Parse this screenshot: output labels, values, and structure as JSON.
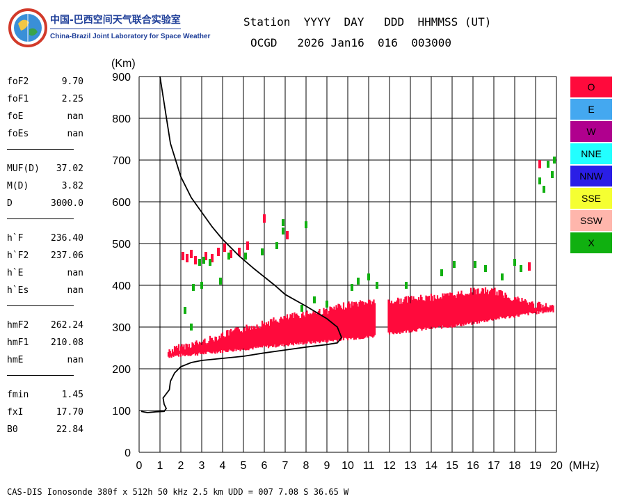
{
  "logo": {
    "org_cn": "中国-巴西空间天气联合实验室",
    "org_en": "China-Brazil Joint Laboratory for Space Weather"
  },
  "header": {
    "line1": "Station  YYYY  DAY   DDD  HHMMSS (UT)",
    "line2": "OCGD   2026 Jan16  016  003000"
  },
  "params": {
    "group1": [
      {
        "name": "foF2",
        "value": "9.70"
      },
      {
        "name": "foF1",
        "value": "2.25"
      },
      {
        "name": "foE",
        "value": "nan"
      },
      {
        "name": "foEs",
        "value": "nan"
      }
    ],
    "group2": [
      {
        "name": "MUF(D)",
        "value": "37.02"
      },
      {
        "name": "M(D)",
        "value": "3.82"
      },
      {
        "name": "D",
        "value": "3000.0"
      }
    ],
    "group3": [
      {
        "name": "h`F",
        "value": "236.40"
      },
      {
        "name": "h`F2",
        "value": "237.06"
      },
      {
        "name": "h`E",
        "value": "nan"
      },
      {
        "name": "h`Es",
        "value": "nan"
      }
    ],
    "group4": [
      {
        "name": "hmF2",
        "value": "262.24"
      },
      {
        "name": "hmF1",
        "value": "210.08"
      },
      {
        "name": "hmE",
        "value": "nan"
      }
    ],
    "group5": [
      {
        "name": "fmin",
        "value": "1.45"
      },
      {
        "name": "fxI",
        "value": "17.70"
      },
      {
        "name": "B0",
        "value": "22.84"
      }
    ]
  },
  "legend": [
    {
      "label": "O",
      "color": "#ff0a3c"
    },
    {
      "label": "E",
      "color": "#44a8f0"
    },
    {
      "label": "W",
      "color": "#b0008e"
    },
    {
      "label": "NNE",
      "color": "#22ffff"
    },
    {
      "label": "NNW",
      "color": "#2a1ee6"
    },
    {
      "label": "SSE",
      "color": "#f5ff32"
    },
    {
      "label": "SSW",
      "color": "#ffb6ac"
    },
    {
      "label": "X",
      "color": "#10b010"
    }
  ],
  "footer": "CAS-DIS Ionosonde 380f x 512h 50 kHz 2.5 km UDD = 007 7.08 S 36.65 W",
  "chart_data": {
    "type": "scatter",
    "xlabel": "(MHz)",
    "ylabel": "(Km)",
    "xlim": [
      0,
      20
    ],
    "ylim": [
      0,
      900
    ],
    "xticks": [
      "0",
      "1",
      "2",
      "3",
      "4",
      "5",
      "6",
      "7",
      "8",
      "9",
      "10",
      "11",
      "12",
      "13",
      "14",
      "15",
      "16",
      "17",
      "18",
      "19",
      "20"
    ],
    "yticks": [
      "0",
      "100",
      "200",
      "300",
      "400",
      "500",
      "600",
      "700",
      "800",
      "900"
    ],
    "grid": true,
    "series": [
      {
        "name": "O",
        "color": "#ff0a3c",
        "band": {
          "x": [
            1.4,
            2,
            3,
            4,
            5,
            6,
            7,
            8,
            9,
            10,
            11,
            12,
            13,
            14,
            15,
            16,
            17,
            18,
            19,
            19.9
          ],
          "lower": [
            225,
            228,
            232,
            238,
            243,
            248,
            253,
            258,
            262,
            268,
            272,
            280,
            287,
            293,
            298,
            305,
            315,
            322,
            330,
            335
          ],
          "upper": [
            250,
            262,
            272,
            290,
            305,
            318,
            330,
            342,
            348,
            362,
            370,
            370,
            375,
            380,
            385,
            395,
            395,
            378,
            362,
            355
          ]
        },
        "points": [
          [
            2.1,
            470
          ],
          [
            2.3,
            465
          ],
          [
            2.5,
            475
          ],
          [
            2.7,
            460
          ],
          [
            3.2,
            470
          ],
          [
            3.5,
            465
          ],
          [
            3.8,
            480
          ],
          [
            4.1,
            490
          ],
          [
            4.4,
            475
          ],
          [
            4.8,
            480
          ],
          [
            5.2,
            495
          ],
          [
            6.0,
            560
          ],
          [
            7.1,
            520
          ],
          [
            18.7,
            445
          ],
          [
            19.2,
            690
          ]
        ]
      },
      {
        "name": "X",
        "color": "#10b010",
        "points": [
          [
            2.2,
            340
          ],
          [
            2.5,
            300
          ],
          [
            2.9,
            455
          ],
          [
            3.1,
            460
          ],
          [
            3.4,
            455
          ],
          [
            2.6,
            395
          ],
          [
            3.0,
            400
          ],
          [
            3.9,
            410
          ],
          [
            4.3,
            470
          ],
          [
            5.1,
            470
          ],
          [
            5.9,
            480
          ],
          [
            6.6,
            495
          ],
          [
            6.9,
            550
          ],
          [
            6.9,
            530
          ],
          [
            8.0,
            545
          ],
          [
            7.8,
            345
          ],
          [
            8.4,
            365
          ],
          [
            9.0,
            355
          ],
          [
            10.2,
            395
          ],
          [
            10.5,
            410
          ],
          [
            11.0,
            420
          ],
          [
            11.4,
            400
          ],
          [
            12.8,
            400
          ],
          [
            14.5,
            430
          ],
          [
            15.1,
            450
          ],
          [
            16.1,
            450
          ],
          [
            16.6,
            440
          ],
          [
            17.4,
            420
          ],
          [
            18.0,
            455
          ],
          [
            18.3,
            440
          ],
          [
            19.2,
            650
          ],
          [
            19.4,
            630
          ],
          [
            19.6,
            690
          ],
          [
            19.9,
            700
          ],
          [
            19.8,
            665
          ]
        ]
      }
    ],
    "profile": {
      "name": "electron density profile",
      "color": "#000000",
      "x": [
        0.1,
        0.4,
        0.8,
        1.2,
        1.3,
        1.2,
        1.15,
        1.3,
        1.45,
        1.5,
        1.7,
        2.0,
        2.5,
        3.0,
        4.0,
        5.0,
        6.0,
        7.0,
        8.0,
        9.0,
        9.5,
        9.7,
        9.5,
        9.0,
        8.0,
        7.0,
        6.5,
        5.5,
        4.8,
        4.0,
        3.5,
        3.0,
        2.5,
        2.0,
        1.5,
        1.0
      ],
      "y": [
        98,
        95,
        97,
        98,
        105,
        115,
        130,
        140,
        150,
        170,
        190,
        205,
        215,
        220,
        225,
        230,
        238,
        245,
        252,
        258,
        262,
        275,
        300,
        320,
        350,
        378,
        400,
        440,
        470,
        510,
        540,
        575,
        610,
        660,
        740,
        900
      ]
    }
  }
}
